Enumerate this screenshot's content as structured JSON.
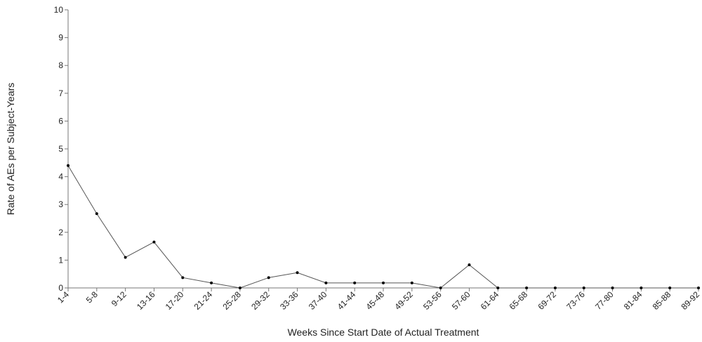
{
  "chart_data": {
    "type": "line",
    "title": "",
    "xlabel": "Weeks Since Start Date of Actual Treatment",
    "ylabel": "Rate of AEs per Subject-Years",
    "ylim": [
      0,
      10
    ],
    "yticks": [
      0,
      1,
      2,
      3,
      4,
      5,
      6,
      7,
      8,
      9,
      10
    ],
    "grid": false,
    "categories": [
      "1-4",
      "5-8",
      "9-12",
      "13-16",
      "17-20",
      "21-24",
      "25-28",
      "29-32",
      "33-36",
      "37-40",
      "41-44",
      "45-48",
      "49-52",
      "53-56",
      "57-60",
      "61-64",
      "65-68",
      "69-72",
      "73-76",
      "77-80",
      "81-84",
      "85-88",
      "89-92"
    ],
    "series": [
      {
        "values": [
          4.4,
          2.67,
          1.1,
          1.65,
          0.37,
          0.18,
          0.0,
          0.37,
          0.55,
          0.18,
          0.18,
          0.18,
          0.18,
          0.0,
          0.83,
          0.0,
          0.0,
          0.0,
          0.0,
          0.0,
          0.0,
          0.0,
          0.0
        ]
      }
    ],
    "colors": {
      "line": "#555555",
      "marker": "#000000",
      "axis": "#777777"
    }
  }
}
